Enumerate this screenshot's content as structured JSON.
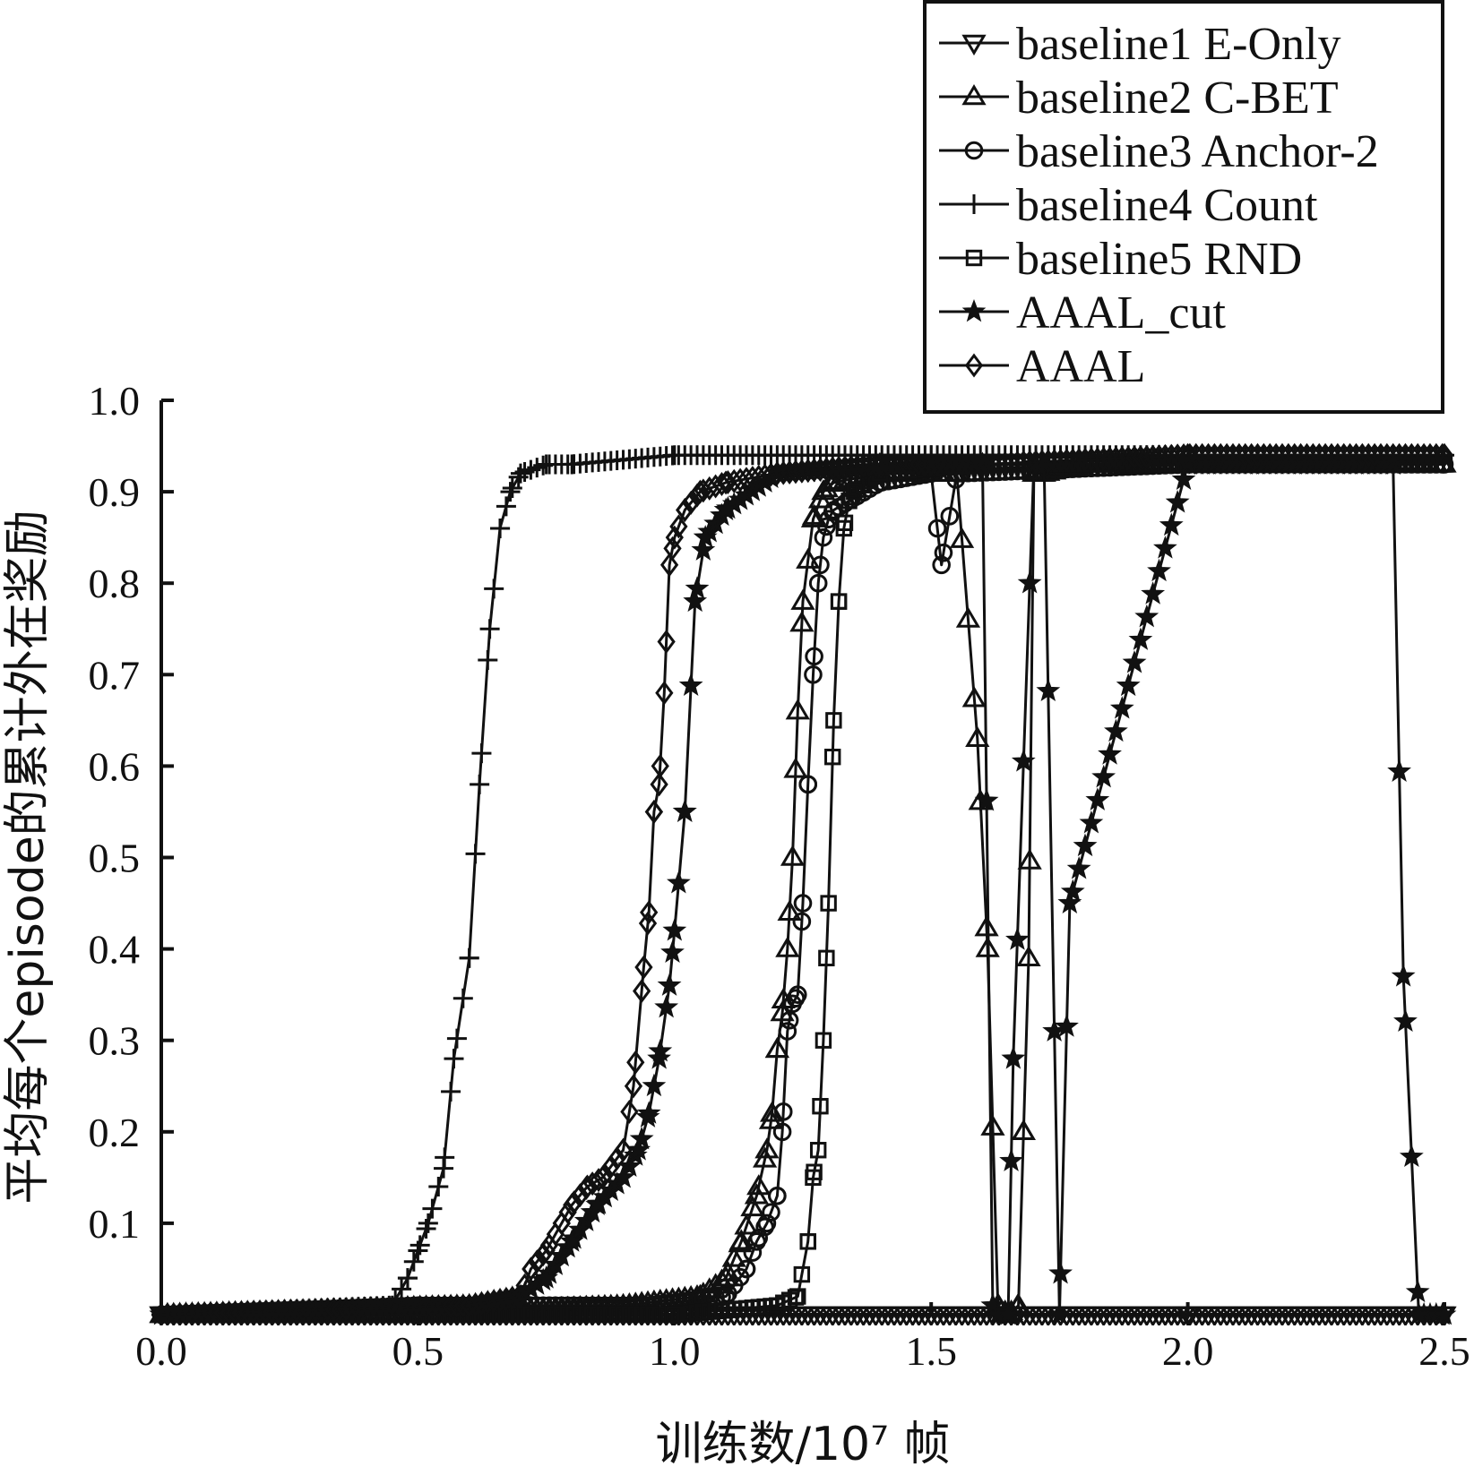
{
  "chart_data": {
    "type": "line",
    "title": "",
    "xlabel": "训练数/10⁷ 帧",
    "ylabel": "平均每个episode的累计外在奖励",
    "xlim": [
      0.0,
      2.5
    ],
    "ylim": [
      0.0,
      1.0
    ],
    "x_ticks": [
      "0.0",
      "0.5",
      "1.0",
      "1.5",
      "2.0",
      "2.5"
    ],
    "y_ticks": [
      "0.1",
      "0.2",
      "0.3",
      "0.4",
      "0.5",
      "0.6",
      "0.7",
      "0.8",
      "0.9",
      "1.0"
    ],
    "grid": false,
    "legend_position": "top-right",
    "series": [
      {
        "name": "baseline1 E-Only",
        "marker": "triangle-down",
        "x": [
          0.0,
          0.5,
          1.0,
          1.5,
          2.0,
          2.5
        ],
        "y": [
          0.0,
          0.0,
          0.0,
          0.0,
          0.0,
          0.0
        ]
      },
      {
        "name": "baseline2 C-BET",
        "marker": "triangle-up",
        "x": [
          0.0,
          0.5,
          0.9,
          1.05,
          1.1,
          1.13,
          1.16,
          1.18,
          1.19,
          1.2,
          1.21,
          1.22,
          1.23,
          1.24,
          1.25,
          1.27,
          1.29,
          1.31,
          1.4,
          1.55,
          1.59,
          1.61,
          1.63,
          1.65,
          1.67,
          1.68,
          1.69,
          1.7,
          1.72,
          1.8,
          2.0,
          2.5
        ],
        "y": [
          0.0,
          0.0,
          0.01,
          0.02,
          0.04,
          0.08,
          0.13,
          0.18,
          0.22,
          0.29,
          0.33,
          0.4,
          0.5,
          0.66,
          0.78,
          0.87,
          0.9,
          0.91,
          0.92,
          0.92,
          0.63,
          0.4,
          0.01,
          0.0,
          0.01,
          0.2,
          0.39,
          0.92,
          0.92,
          0.93,
          0.93,
          0.93
        ]
      },
      {
        "name": "baseline3 Anchor-2",
        "marker": "circle",
        "x": [
          0.0,
          0.5,
          0.95,
          1.1,
          1.14,
          1.16,
          1.18,
          1.2,
          1.21,
          1.22,
          1.23,
          1.24,
          1.25,
          1.26,
          1.27,
          1.28,
          1.29,
          1.3,
          1.31,
          1.4,
          1.5,
          1.52,
          1.55,
          2.0,
          2.5
        ],
        "y": [
          0.0,
          0.01,
          0.01,
          0.02,
          0.05,
          0.08,
          0.1,
          0.13,
          0.2,
          0.31,
          0.34,
          0.35,
          0.45,
          0.58,
          0.7,
          0.8,
          0.85,
          0.87,
          0.88,
          0.91,
          0.92,
          0.82,
          0.92,
          0.93,
          0.93
        ]
      },
      {
        "name": "baseline4 Count",
        "marker": "plus",
        "x": [
          0.0,
          0.45,
          0.48,
          0.5,
          0.52,
          0.55,
          0.57,
          0.6,
          0.62,
          0.64,
          0.66,
          0.68,
          0.7,
          0.75,
          0.8,
          1.0,
          1.5,
          2.0,
          2.5
        ],
        "y": [
          0.0,
          0.01,
          0.04,
          0.07,
          0.1,
          0.16,
          0.28,
          0.39,
          0.58,
          0.75,
          0.86,
          0.9,
          0.92,
          0.93,
          0.93,
          0.94,
          0.94,
          0.94,
          0.94
        ]
      },
      {
        "name": "baseline5 RND",
        "marker": "square",
        "x": [
          0.0,
          1.0,
          1.2,
          1.24,
          1.26,
          1.27,
          1.28,
          1.29,
          1.3,
          1.31,
          1.32,
          1.33,
          1.34,
          1.35,
          1.4,
          1.6,
          2.0,
          2.5
        ],
        "y": [
          0.0,
          0.0,
          0.01,
          0.02,
          0.08,
          0.15,
          0.18,
          0.3,
          0.45,
          0.65,
          0.78,
          0.86,
          0.89,
          0.9,
          0.92,
          0.93,
          0.93,
          0.93
        ]
      },
      {
        "name": "AAAL_cut",
        "marker": "star",
        "x": [
          0.0,
          0.6,
          0.7,
          0.75,
          0.8,
          0.85,
          0.9,
          0.93,
          0.95,
          0.97,
          0.99,
          1.0,
          1.02,
          1.04,
          1.06,
          1.1,
          1.2,
          1.5,
          1.6,
          1.62,
          1.63,
          1.65,
          1.66,
          1.7,
          1.72,
          1.75,
          1.77,
          2.0,
          2.4,
          2.42,
          2.45,
          2.5
        ],
        "y": [
          0.0,
          0.01,
          0.02,
          0.04,
          0.08,
          0.12,
          0.15,
          0.18,
          0.22,
          0.28,
          0.36,
          0.42,
          0.55,
          0.78,
          0.85,
          0.88,
          0.92,
          0.93,
          0.93,
          0.01,
          0.0,
          0.0,
          0.28,
          0.93,
          0.93,
          0.0,
          0.45,
          0.93,
          0.93,
          0.37,
          0.0,
          0.0
        ]
      },
      {
        "name": "AAAL",
        "marker": "diamond",
        "x": [
          0.0,
          0.6,
          0.7,
          0.72,
          0.75,
          0.78,
          0.8,
          0.83,
          0.86,
          0.9,
          0.92,
          0.94,
          0.95,
          0.96,
          0.97,
          0.98,
          0.99,
          1.0,
          1.02,
          1.05,
          1.1,
          1.2,
          1.4,
          1.6,
          2.0,
          2.5
        ],
        "y": [
          0.0,
          0.01,
          0.02,
          0.05,
          0.07,
          0.1,
          0.12,
          0.14,
          0.15,
          0.18,
          0.25,
          0.38,
          0.44,
          0.55,
          0.58,
          0.68,
          0.82,
          0.85,
          0.88,
          0.9,
          0.91,
          0.92,
          0.93,
          0.93,
          0.94,
          0.94
        ]
      }
    ]
  }
}
